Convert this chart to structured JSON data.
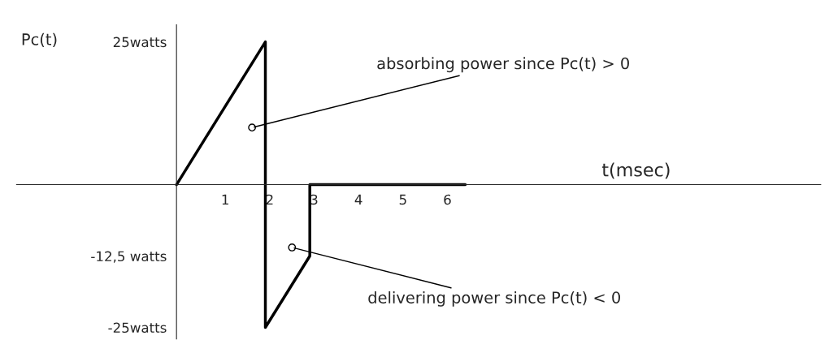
{
  "chart_data": {
    "type": "line",
    "xlabel": "t(msec)",
    "ylabel": "Pc(t)",
    "x": [
      0,
      2,
      2,
      3,
      3,
      6.5
    ],
    "series": [
      {
        "color": "#000000",
        "values": [
          0,
          25,
          -25,
          -12.5,
          0,
          0
        ]
      }
    ],
    "xlim": [
      -3.6,
      14.5
    ],
    "ylim": [
      -27,
      28
    ],
    "xticks": [
      1,
      2,
      3,
      4,
      5,
      6
    ],
    "yticks": [
      {
        "value": 25,
        "label": "25watts"
      },
      {
        "value": -12.5,
        "label": "-12,5 watts"
      },
      {
        "value": -25,
        "label": "-25watts"
      }
    ],
    "annotations": [
      {
        "text": "absorbing power since Pc(t) > 0",
        "x": 1.7,
        "y": 10
      },
      {
        "text": "delivering power since Pc(t) < 0",
        "x": 2.6,
        "y": -11
      }
    ],
    "grid": false,
    "legend": false,
    "marker": "none",
    "line_style": "solid"
  }
}
